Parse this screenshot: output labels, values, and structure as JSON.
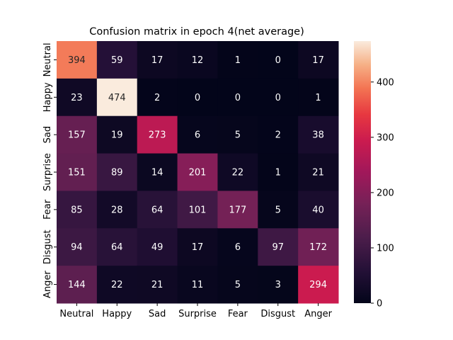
{
  "chart_data": {
    "type": "heatmap",
    "title": "Confusion matrix in epoch 4(net average)",
    "xlabel": "",
    "ylabel": "",
    "x_categories": [
      "Neutral",
      "Happy",
      "Sad",
      "Surprise",
      "Fear",
      "Disgust",
      "Anger"
    ],
    "y_categories": [
      "Neutral",
      "Happy",
      "Sad",
      "Surprise",
      "Fear",
      "Disgust",
      "Anger"
    ],
    "values": [
      [
        394,
        59,
        17,
        12,
        1,
        0,
        17
      ],
      [
        23,
        474,
        2,
        0,
        0,
        0,
        1
      ],
      [
        157,
        19,
        273,
        6,
        5,
        2,
        38
      ],
      [
        151,
        89,
        14,
        201,
        22,
        1,
        21
      ],
      [
        85,
        28,
        64,
        101,
        177,
        5,
        40
      ],
      [
        94,
        64,
        49,
        17,
        6,
        97,
        172
      ],
      [
        144,
        22,
        21,
        11,
        5,
        3,
        294
      ]
    ],
    "colormap": "rocket",
    "color_range": [
      0,
      474
    ],
    "colorbar_ticks": [
      0,
      100,
      200,
      300,
      400
    ],
    "grid": false,
    "legend": "colorbar-right"
  }
}
